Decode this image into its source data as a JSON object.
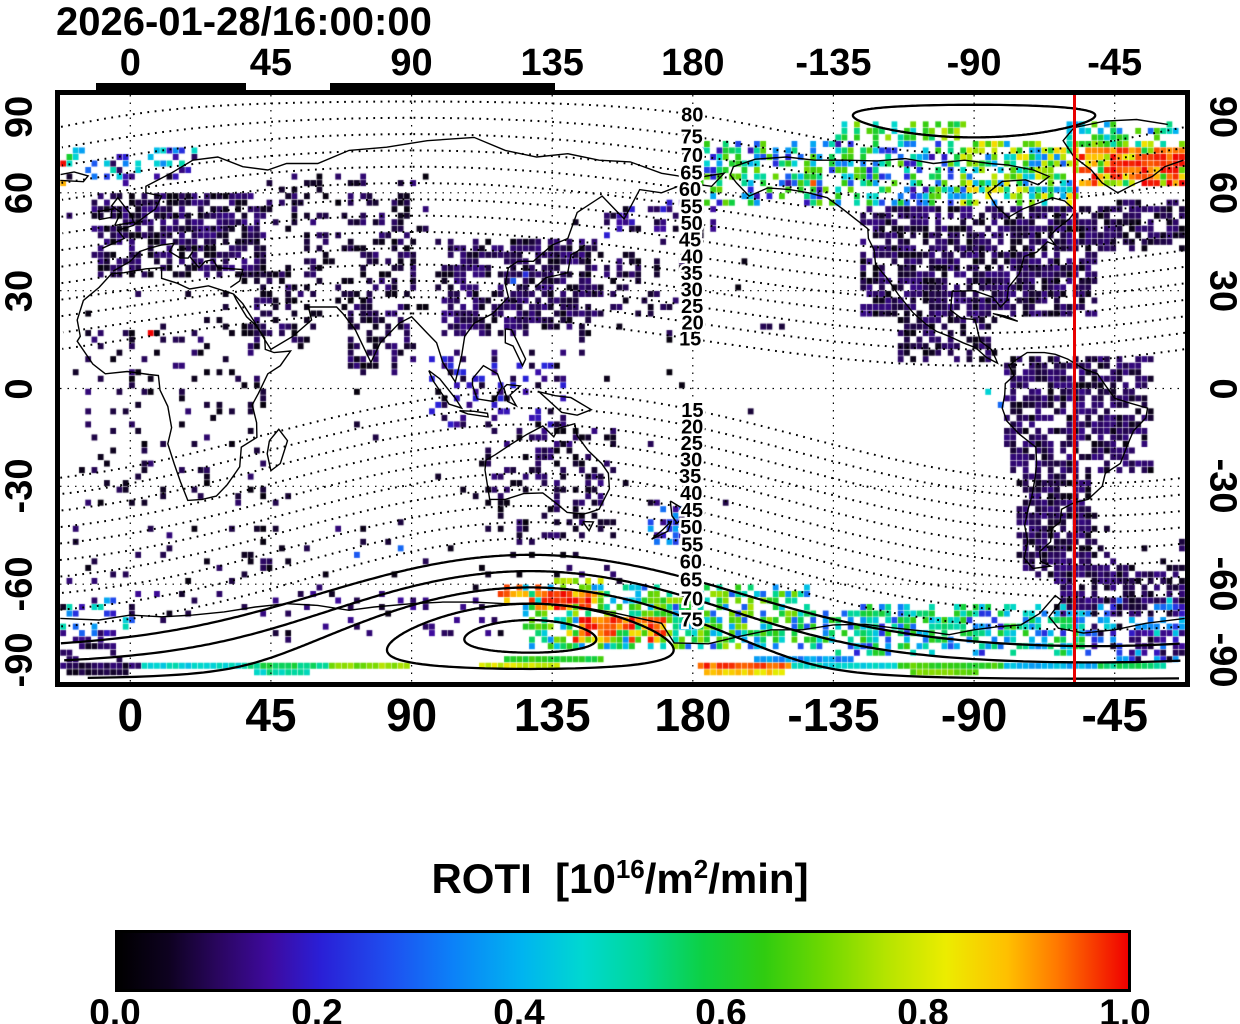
{
  "title": "2026-01-28/16:00:00",
  "colors": {
    "background": "#ffffff",
    "axis": "#000000",
    "meridian_line": "#e80000"
  },
  "axes": {
    "x_tick_labels": [
      "0",
      "45",
      "90",
      "135",
      "180",
      "-135",
      "-90",
      "-45"
    ],
    "y_tick_labels": [
      "90",
      "60",
      "30",
      "0",
      "-30",
      "-60",
      "-90"
    ]
  },
  "colorbar": {
    "title_parts": {
      "prefix": "ROTI  [10",
      "sup1": "16",
      "mid": "/m",
      "sup2": "2",
      "suffix": "/min]"
    },
    "tick_labels": [
      "0.0",
      "0.2",
      "0.4",
      "0.6",
      "0.8",
      "1.0"
    ],
    "range": [
      0,
      1
    ],
    "stops": [
      [
        0.0,
        "#000000"
      ],
      [
        0.05,
        "#0e0220"
      ],
      [
        0.1,
        "#2a0660"
      ],
      [
        0.15,
        "#3e0a9e"
      ],
      [
        0.2,
        "#2a1fd6"
      ],
      [
        0.27,
        "#1e50f0"
      ],
      [
        0.33,
        "#0c80f8"
      ],
      [
        0.4,
        "#00b4f0"
      ],
      [
        0.46,
        "#00d8d0"
      ],
      [
        0.52,
        "#00d896"
      ],
      [
        0.58,
        "#0ed042"
      ],
      [
        0.64,
        "#30cc10"
      ],
      [
        0.7,
        "#70d800"
      ],
      [
        0.76,
        "#b4e400"
      ],
      [
        0.82,
        "#ecec00"
      ],
      [
        0.88,
        "#ffc000"
      ],
      [
        0.93,
        "#ff7800"
      ],
      [
        1.0,
        "#f00000"
      ]
    ]
  },
  "chart_data": {
    "type": "heatmap",
    "title": "2026-01-28/16:00:00",
    "colorbar_label": "ROTI [10^16/m^2/min]",
    "value_range": [
      0,
      1
    ],
    "x": {
      "label": "",
      "ticks": [
        0,
        45,
        90,
        135,
        180,
        -135,
        -90,
        -45
      ],
      "range_deg": [
        -22.5,
        337.5
      ]
    },
    "y": {
      "label": "",
      "ticks": [
        90,
        60,
        30,
        0,
        -30,
        -60,
        -90
      ],
      "range_deg": [
        -90,
        90
      ]
    },
    "meridian_marker_lon": -58,
    "coverage_bars_lon": [
      [
        -11,
        37
      ],
      [
        64,
        136
      ]
    ],
    "contours": {
      "kind": "geomagnetic-latitude",
      "pole_north": [
        82,
        -90
      ],
      "pole_south": [
        -76,
        128
      ],
      "levels_north": [
        15,
        20,
        25,
        30,
        35,
        40,
        45,
        50,
        55,
        60,
        65,
        70,
        75,
        80,
        85
      ],
      "levels_south": [
        15,
        20,
        25,
        30,
        35,
        40,
        45,
        50,
        55,
        60,
        65,
        70,
        75,
        80,
        85
      ],
      "labeled_north": [
        15,
        20,
        25,
        30,
        35,
        40,
        45,
        50,
        55,
        60,
        65,
        70,
        75,
        80
      ],
      "labeled_south": [
        15,
        20,
        25,
        30,
        35,
        40,
        45,
        50,
        55,
        60,
        65,
        70,
        75
      ],
      "label_lon": 179.5
    },
    "cell_size_deg": 2,
    "regions": [
      {
        "name": "europe",
        "lon": [
          -12,
          42
        ],
        "lat": [
          36,
          61
        ],
        "n": 420,
        "v": [
          0.02,
          0.13
        ]
      },
      {
        "name": "scandinavia-coast",
        "lon": [
          -22,
          20
        ],
        "lat": [
          64,
          74
        ],
        "n": 45,
        "v": [
          0.05,
          0.5
        ]
      },
      {
        "name": "russia-west",
        "lon": [
          42,
          95
        ],
        "lat": [
          48,
          66
        ],
        "n": 80,
        "v": [
          0.02,
          0.12
        ]
      },
      {
        "name": "central-asia",
        "lon": [
          55,
          92
        ],
        "lat": [
          24,
          48
        ],
        "n": 90,
        "v": [
          0.02,
          0.12
        ]
      },
      {
        "name": "east-asia",
        "lon": [
          98,
          147
        ],
        "lat": [
          18,
          46
        ],
        "n": 400,
        "v": [
          0.02,
          0.13
        ]
      },
      {
        "name": "japan-east-pacific",
        "lon": [
          147,
          176
        ],
        "lat": [
          24,
          42
        ],
        "n": 50,
        "v": [
          0.02,
          0.12
        ]
      },
      {
        "name": "kamchatka-bering",
        "lon": [
          150,
          186
        ],
        "lat": [
          48,
          58
        ],
        "n": 50,
        "v": [
          0.03,
          0.2
        ]
      },
      {
        "name": "india",
        "lon": [
          68,
          90
        ],
        "lat": [
          6,
          26
        ],
        "n": 70,
        "v": [
          0.02,
          0.12
        ]
      },
      {
        "name": "southeast-asia-equatorial",
        "lon": [
          95,
          141
        ],
        "lat": [
          -11,
          12
        ],
        "n": 80,
        "v": [
          0.03,
          0.22
        ]
      },
      {
        "name": "north-america",
        "lon": [
          -127,
          -52
        ],
        "lat": [
          23,
          57
        ],
        "n": 860,
        "v": [
          0.02,
          0.13
        ]
      },
      {
        "name": "north-atlantic",
        "lon": [
          -52,
          -24
        ],
        "lat": [
          44,
          58
        ],
        "n": 130,
        "v": [
          0.02,
          0.12
        ]
      },
      {
        "name": "mexico-central-america",
        "lon": [
          -115,
          -83
        ],
        "lat": [
          10,
          23
        ],
        "n": 90,
        "v": [
          0.02,
          0.12
        ]
      },
      {
        "name": "south-america-north",
        "lon": [
          -81,
          -35
        ],
        "lat": [
          -25,
          11
        ],
        "n": 520,
        "v": [
          0.02,
          0.13
        ]
      },
      {
        "name": "south-america-cone",
        "lon": [
          -76,
          -53
        ],
        "lat": [
          -56,
          -25
        ],
        "n": 300,
        "v": [
          0.02,
          0.13
        ]
      },
      {
        "name": "south-atlantic-southeast",
        "lon": [
          -66,
          -22
        ],
        "lat": [
          -68,
          -54
        ],
        "n": 210,
        "v": [
          0.03,
          0.13
        ]
      },
      {
        "name": "africa",
        "lon": [
          -16,
          42
        ],
        "lat": [
          -35,
          22
        ],
        "n": 110,
        "v": [
          0.02,
          0.12
        ]
      },
      {
        "name": "middle-east",
        "lon": [
          34,
          58
        ],
        "lat": [
          12,
          38
        ],
        "n": 70,
        "v": [
          0.02,
          0.12
        ]
      },
      {
        "name": "australia",
        "lon": [
          113,
          154
        ],
        "lat": [
          -44,
          -11
        ],
        "n": 140,
        "v": [
          0.02,
          0.13
        ]
      },
      {
        "name": "new-zealand",
        "lon": [
          166,
          179
        ],
        "lat": [
          -47,
          -34
        ],
        "n": 40,
        "v": [
          0.05,
          0.4
        ]
      },
      {
        "name": "aurora-north-america",
        "lon": [
          -178,
          -95
        ],
        "lat": [
          57,
          76
        ],
        "n": 340,
        "v": [
          0.15,
          0.7
        ]
      },
      {
        "name": "aurora-canada-east",
        "lon": [
          -95,
          -58
        ],
        "lat": [
          58,
          76
        ],
        "n": 260,
        "v": [
          0.25,
          0.85
        ]
      },
      {
        "name": "aurora-greenland-iceland",
        "lon": [
          -58,
          -22
        ],
        "lat": [
          63,
          76
        ],
        "n": 230,
        "v": [
          0.55,
          1.0
        ]
      },
      {
        "name": "aurora-greenland-red-core",
        "lon": [
          -48,
          -24
        ],
        "lat": [
          66,
          74
        ],
        "n": 90,
        "v": [
          0.85,
          1.0
        ]
      },
      {
        "name": "aurora-arctic-high",
        "lon": [
          -62,
          -25
        ],
        "lat": [
          76,
          82
        ],
        "n": 60,
        "v": [
          0.3,
          0.7
        ]
      },
      {
        "name": "aurora-arctic-yellow-arc",
        "lon": [
          -135,
          -95
        ],
        "lat": [
          77,
          82
        ],
        "n": 50,
        "v": [
          0.4,
          0.8
        ]
      },
      {
        "name": "aurora-south-pacific",
        "lon": [
          125,
          215
        ],
        "lat": [
          -78,
          -60
        ],
        "n": 430,
        "v": [
          0.25,
          0.75
        ]
      },
      {
        "name": "aurora-south-americas",
        "lon": [
          -145,
          -55
        ],
        "lat": [
          -80,
          -66
        ],
        "n": 330,
        "v": [
          0.2,
          0.65
        ]
      },
      {
        "name": "aurora-south-atlantic",
        "lon": [
          -55,
          0
        ],
        "lat": [
          -75,
          -63
        ],
        "n": 60,
        "v": [
          0.1,
          0.5
        ]
      },
      {
        "name": "weddell-dark",
        "lon": [
          -40,
          -5
        ],
        "lat": [
          -84,
          -72
        ],
        "n": 80,
        "v": [
          0.04,
          0.15
        ]
      },
      {
        "name": "south-atlantic-bottom",
        "lon": [
          -55,
          -23
        ],
        "lat": [
          -84,
          -70
        ],
        "n": 45,
        "v": [
          0.05,
          0.4
        ]
      },
      {
        "name": "indian-ocean-south-sparse",
        "lon": [
          0,
          120
        ],
        "lat": [
          -76,
          -60
        ],
        "n": 55,
        "v": [
          0.03,
          0.15
        ]
      },
      {
        "name": "southern-midlat-sparse",
        "lon": [
          -60,
          160
        ],
        "lat": [
          -58,
          -40
        ],
        "n": 80,
        "v": [
          0.02,
          0.12
        ]
      },
      {
        "name": "ocean-sparse",
        "lon": [
          -22,
          200
        ],
        "lat": [
          -35,
          55
        ],
        "n": 70,
        "v": [
          0.02,
          0.1
        ]
      },
      {
        "name": "red-ring-inner",
        "lon": [
          130,
          147
        ],
        "lat": [
          -67,
          -61
        ],
        "n": 60,
        "v": [
          0.82,
          1.0
        ]
      },
      {
        "name": "red-ring-outer",
        "lon": [
          140,
          170
        ],
        "lat": [
          -76,
          -69
        ],
        "n": 85,
        "v": [
          0.8,
          1.0
        ]
      },
      {
        "name": "orange-arc-south",
        "lon": [
          118,
          130
        ],
        "lat": [
          -64,
          -60
        ],
        "n": 22,
        "v": [
          0.85,
          0.97
        ]
      },
      {
        "name": "cyan-patch-south",
        "lon": [
          160,
          185
        ],
        "lat": [
          -74,
          -66
        ],
        "n": 60,
        "v": [
          0.35,
          0.55
        ]
      },
      {
        "name": "yellow-patch-south",
        "lon": [
          135,
          150
        ],
        "lat": [
          -63,
          -57
        ],
        "n": 25,
        "v": [
          0.6,
          0.8
        ]
      }
    ],
    "strips": [
      {
        "lat": -83.5,
        "lon": [
          -22,
          3
        ],
        "v": 0.08
      },
      {
        "lat": -83.5,
        "lon": [
          3,
          38
        ],
        "v": 0.45
      },
      {
        "lat": -83.5,
        "lon": [
          38,
          63
        ],
        "v": 0.55
      },
      {
        "lat": -83.5,
        "lon": [
          64,
          89
        ],
        "v": 0.72
      },
      {
        "lat": -84.5,
        "lon": [
          112,
          137
        ],
        "v": 0.8
      },
      {
        "lat": -83.5,
        "lon": [
          182,
          211
        ],
        "v": 0.95
      },
      {
        "lat": -83.5,
        "lon": [
          211,
          246
        ],
        "v": 0.45
      },
      {
        "lat": -83.5,
        "lon": [
          246,
          278
        ],
        "v": 0.65
      },
      {
        "lat": -84,
        "lon": [
          278,
          310
        ],
        "v": 0.4
      },
      {
        "lat": -84,
        "lon": [
          310,
          330
        ],
        "v": 0.55
      },
      {
        "lat": -86.5,
        "lon": [
          -20,
          -2
        ],
        "v": 0.07
      },
      {
        "lat": -86.5,
        "lon": [
          40,
          56
        ],
        "v": 0.5
      },
      {
        "lat": -86.5,
        "lon": [
          183,
          208
        ],
        "v": 0.85
      },
      {
        "lat": -86.5,
        "lon": [
          250,
          270
        ],
        "v": 0.7
      },
      {
        "lat": -81.5,
        "lon": [
          120,
          150
        ],
        "v": 0.62
      },
      {
        "lat": -81.5,
        "lon": [
          200,
          230
        ],
        "v": 0.35
      }
    ],
    "points": [
      {
        "lon": 5,
        "lat": 19,
        "v": 1.0
      },
      {
        "lon": -21,
        "lat": 73,
        "v": 0.6
      },
      {
        "lon": -86,
        "lat": 1,
        "v": 0.45
      },
      {
        "lon": 122,
        "lat": 35,
        "v": 0.28
      },
      {
        "lon": 125,
        "lat": 37,
        "v": 0.22
      },
      {
        "lon": 176,
        "lat": -36,
        "v": 0.3
      },
      {
        "lon": -82,
        "lat": -4,
        "v": 0.3
      },
      {
        "lon": -143,
        "lat": 65,
        "v": 0.95
      },
      {
        "lon": -156,
        "lat": 20,
        "v": 0.08
      },
      {
        "lon": -152,
        "lat": 20,
        "v": 0.07
      },
      {
        "lon": -158,
        "lat": 21,
        "v": 0.09
      },
      {
        "lon": 86,
        "lat": -48,
        "v": 0.3
      },
      {
        "lon": 72,
        "lat": -50,
        "v": 0.28
      }
    ]
  }
}
